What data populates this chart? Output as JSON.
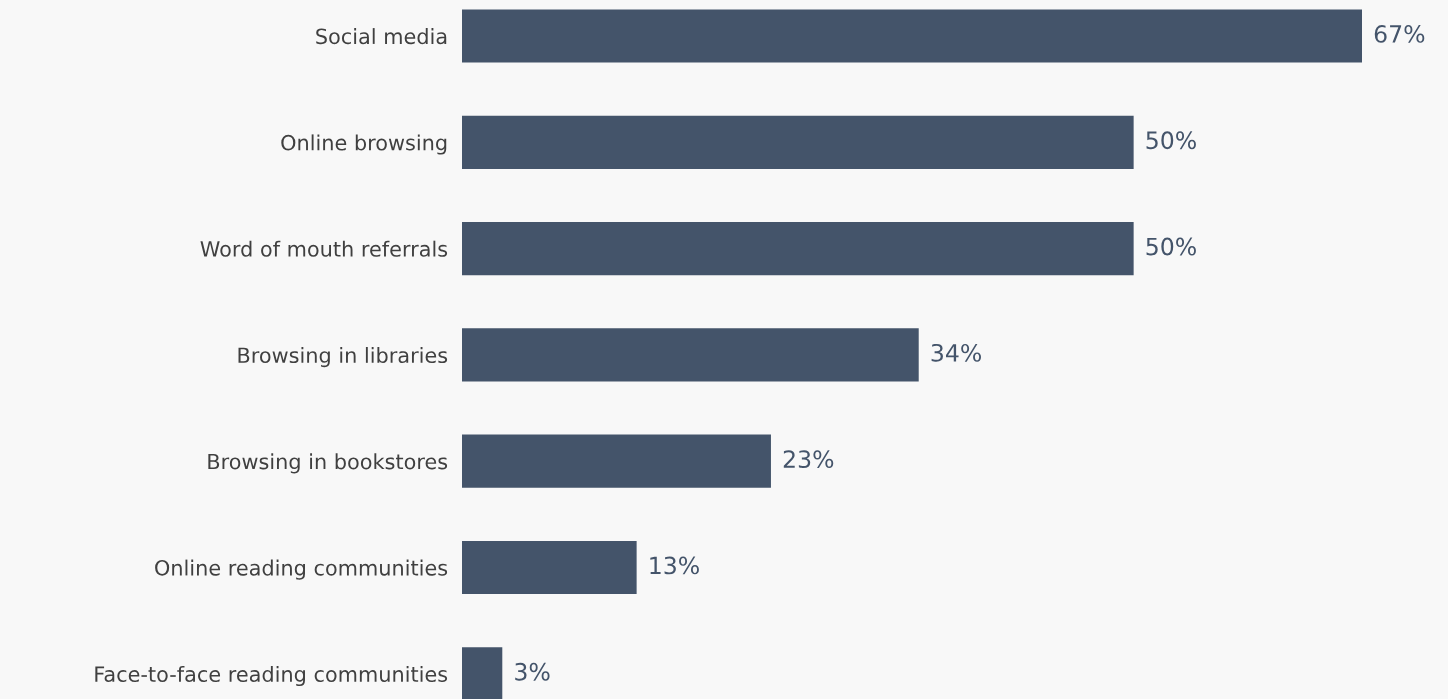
{
  "chart_data": {
    "type": "bar",
    "orientation": "horizontal",
    "categories": [
      "Social media",
      "Online browsing",
      "Word of mouth referrals",
      "Browsing in libraries",
      "Browsing in bookstores",
      "Online reading communities",
      "Face-to-face reading communities"
    ],
    "values": [
      67,
      50,
      50,
      34,
      23,
      13,
      3
    ],
    "value_labels": [
      "67%",
      "50%",
      "50%",
      "34%",
      "23%",
      "13%",
      "3%"
    ],
    "color": "#44546a",
    "grid": false,
    "legend": false
  }
}
